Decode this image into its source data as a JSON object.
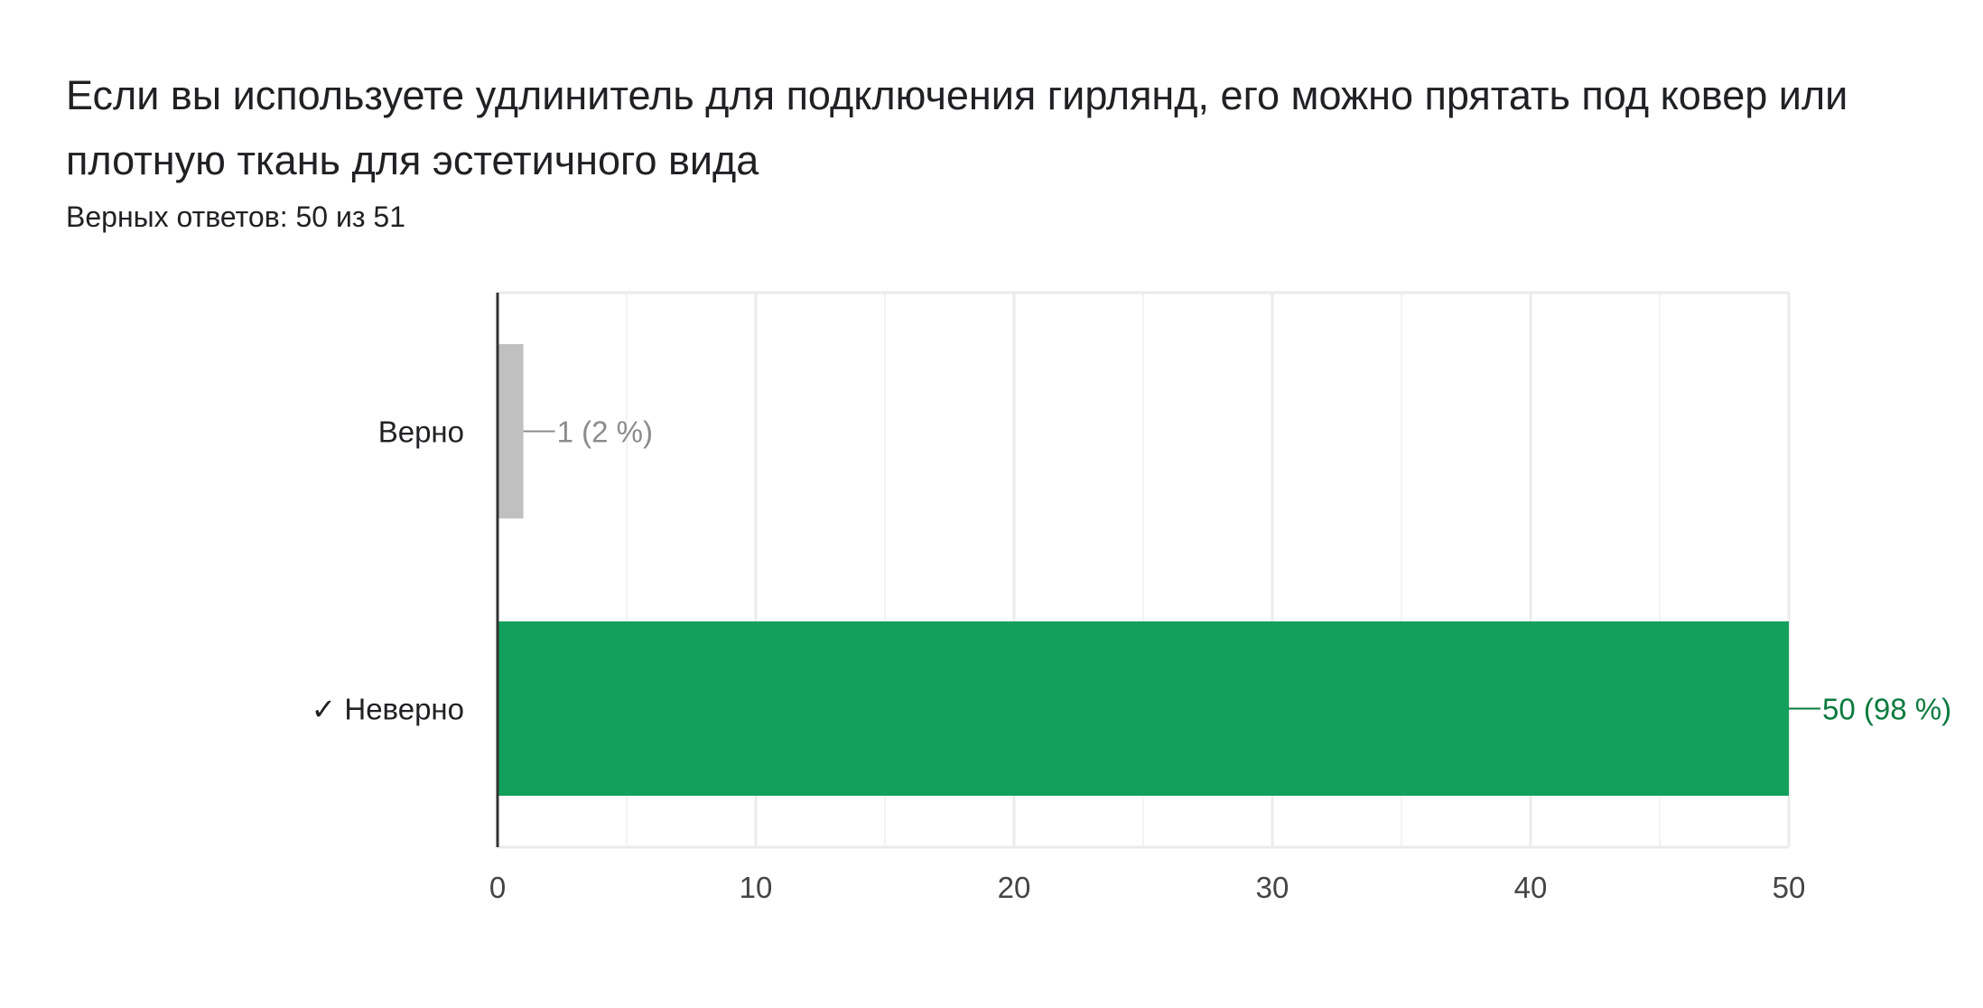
{
  "question": {
    "title": "Если вы используете удлинитель для подключения гирлянд, его можно прятать под ковер или плотную ткань для эстетичного вида",
    "summary": "Верных ответов: 50 из 51"
  },
  "colors": {
    "correct_bar": "#12a05c",
    "correct_label": "#0b7a3e",
    "other_bar": "#c0c0c0",
    "other_label": "#8c8c8c",
    "grid": "#ebebeb",
    "axis": "#333333",
    "text": "#202124"
  },
  "chart_data": {
    "type": "bar",
    "orientation": "horizontal",
    "categories": [
      "Верно",
      "✓ Неверно"
    ],
    "values": [
      1,
      50
    ],
    "value_labels": [
      "1 (2 %)",
      "50 (98 %)"
    ],
    "correct": [
      false,
      true
    ],
    "xlim": [
      0,
      50
    ],
    "xticks": [
      0,
      10,
      20,
      30,
      40,
      50
    ],
    "xtick_labels": [
      "0",
      "10",
      "20",
      "30",
      "40",
      "50"
    ],
    "minor_gridlines": [
      5,
      15,
      25,
      35,
      45
    ],
    "grid": true
  }
}
